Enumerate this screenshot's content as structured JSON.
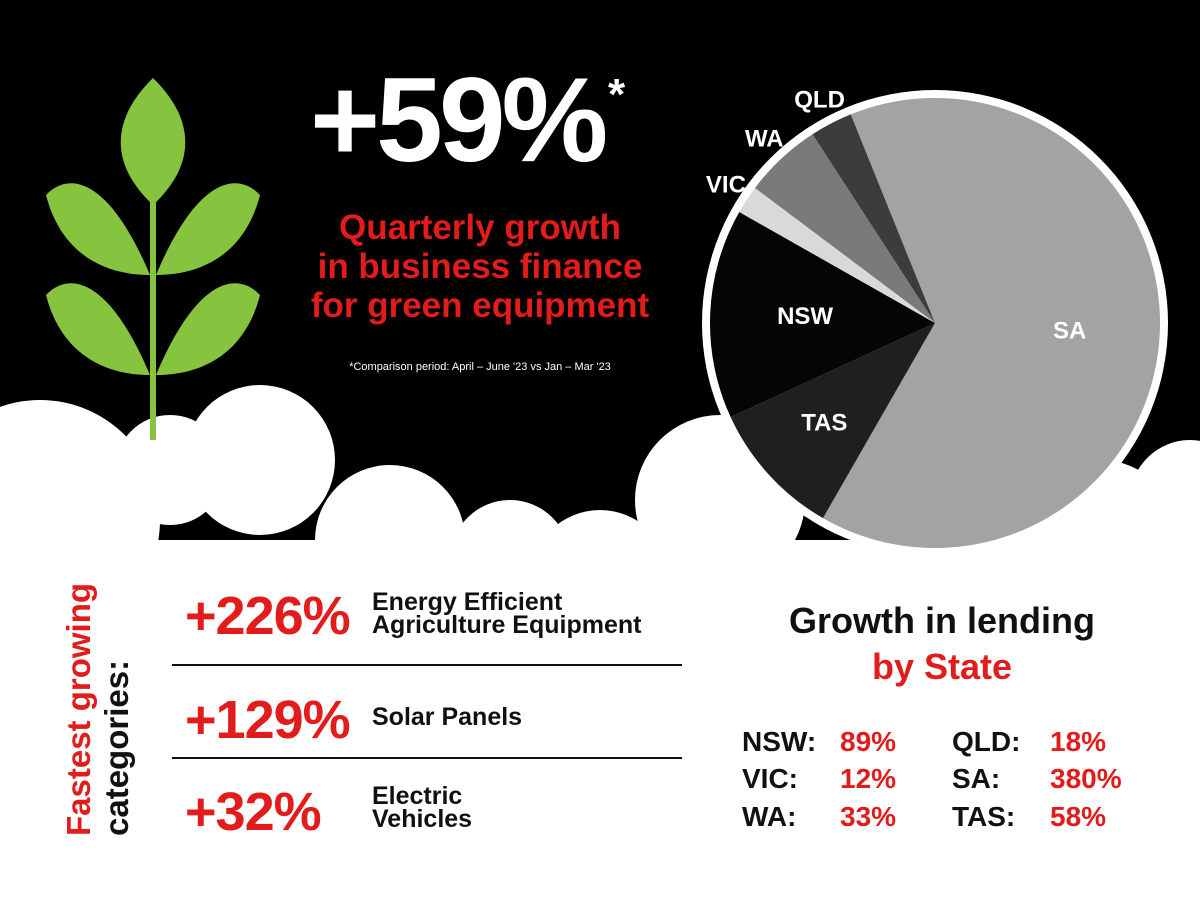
{
  "hero": {
    "value": "+59%",
    "footnote_mark": "*",
    "caption_lines": [
      "Quarterly growth",
      "in business finance",
      "for green equipment"
    ],
    "note": "*Comparison period: April – June '23 vs Jan – Mar '23"
  },
  "categories_section": {
    "title_lines": [
      "Fastest growing",
      "categories:"
    ],
    "items": [
      {
        "pct": "+226%",
        "label_lines": [
          "Energy Efficient",
          "Agriculture Equipment"
        ]
      },
      {
        "pct": "+129%",
        "label_lines": [
          "Solar Panels"
        ]
      },
      {
        "pct": "+32%",
        "label_lines": [
          "Electric",
          "Vehicles"
        ]
      }
    ]
  },
  "state_section": {
    "heading_line1": "Growth in lending",
    "heading_line2": "by State",
    "stats": [
      {
        "name": "NSW:",
        "value": "89%"
      },
      {
        "name": "QLD:",
        "value": "18%"
      },
      {
        "name": "VIC:",
        "value": "12%"
      },
      {
        "name": "SA:",
        "value": "380%"
      },
      {
        "name": "WA:",
        "value": "33%"
      },
      {
        "name": "TAS:",
        "value": "58%"
      }
    ]
  },
  "chart_data": {
    "type": "pie",
    "categories": [
      "SA",
      "TAS",
      "NSW",
      "VIC",
      "WA",
      "QLD"
    ],
    "values": [
      380,
      58,
      89,
      12,
      33,
      18
    ],
    "colors": [
      "#a3a3a3",
      "#1f1f1f",
      "#050505",
      "#d9d9d9",
      "#7a7a7a",
      "#3c3c3c"
    ],
    "title": "",
    "legend": "none"
  },
  "colors": {
    "background_dark": "#000000",
    "accent_red": "#e21b1b",
    "leaf_green": "#86c440"
  },
  "icons": {
    "plant": "plant-icon"
  }
}
